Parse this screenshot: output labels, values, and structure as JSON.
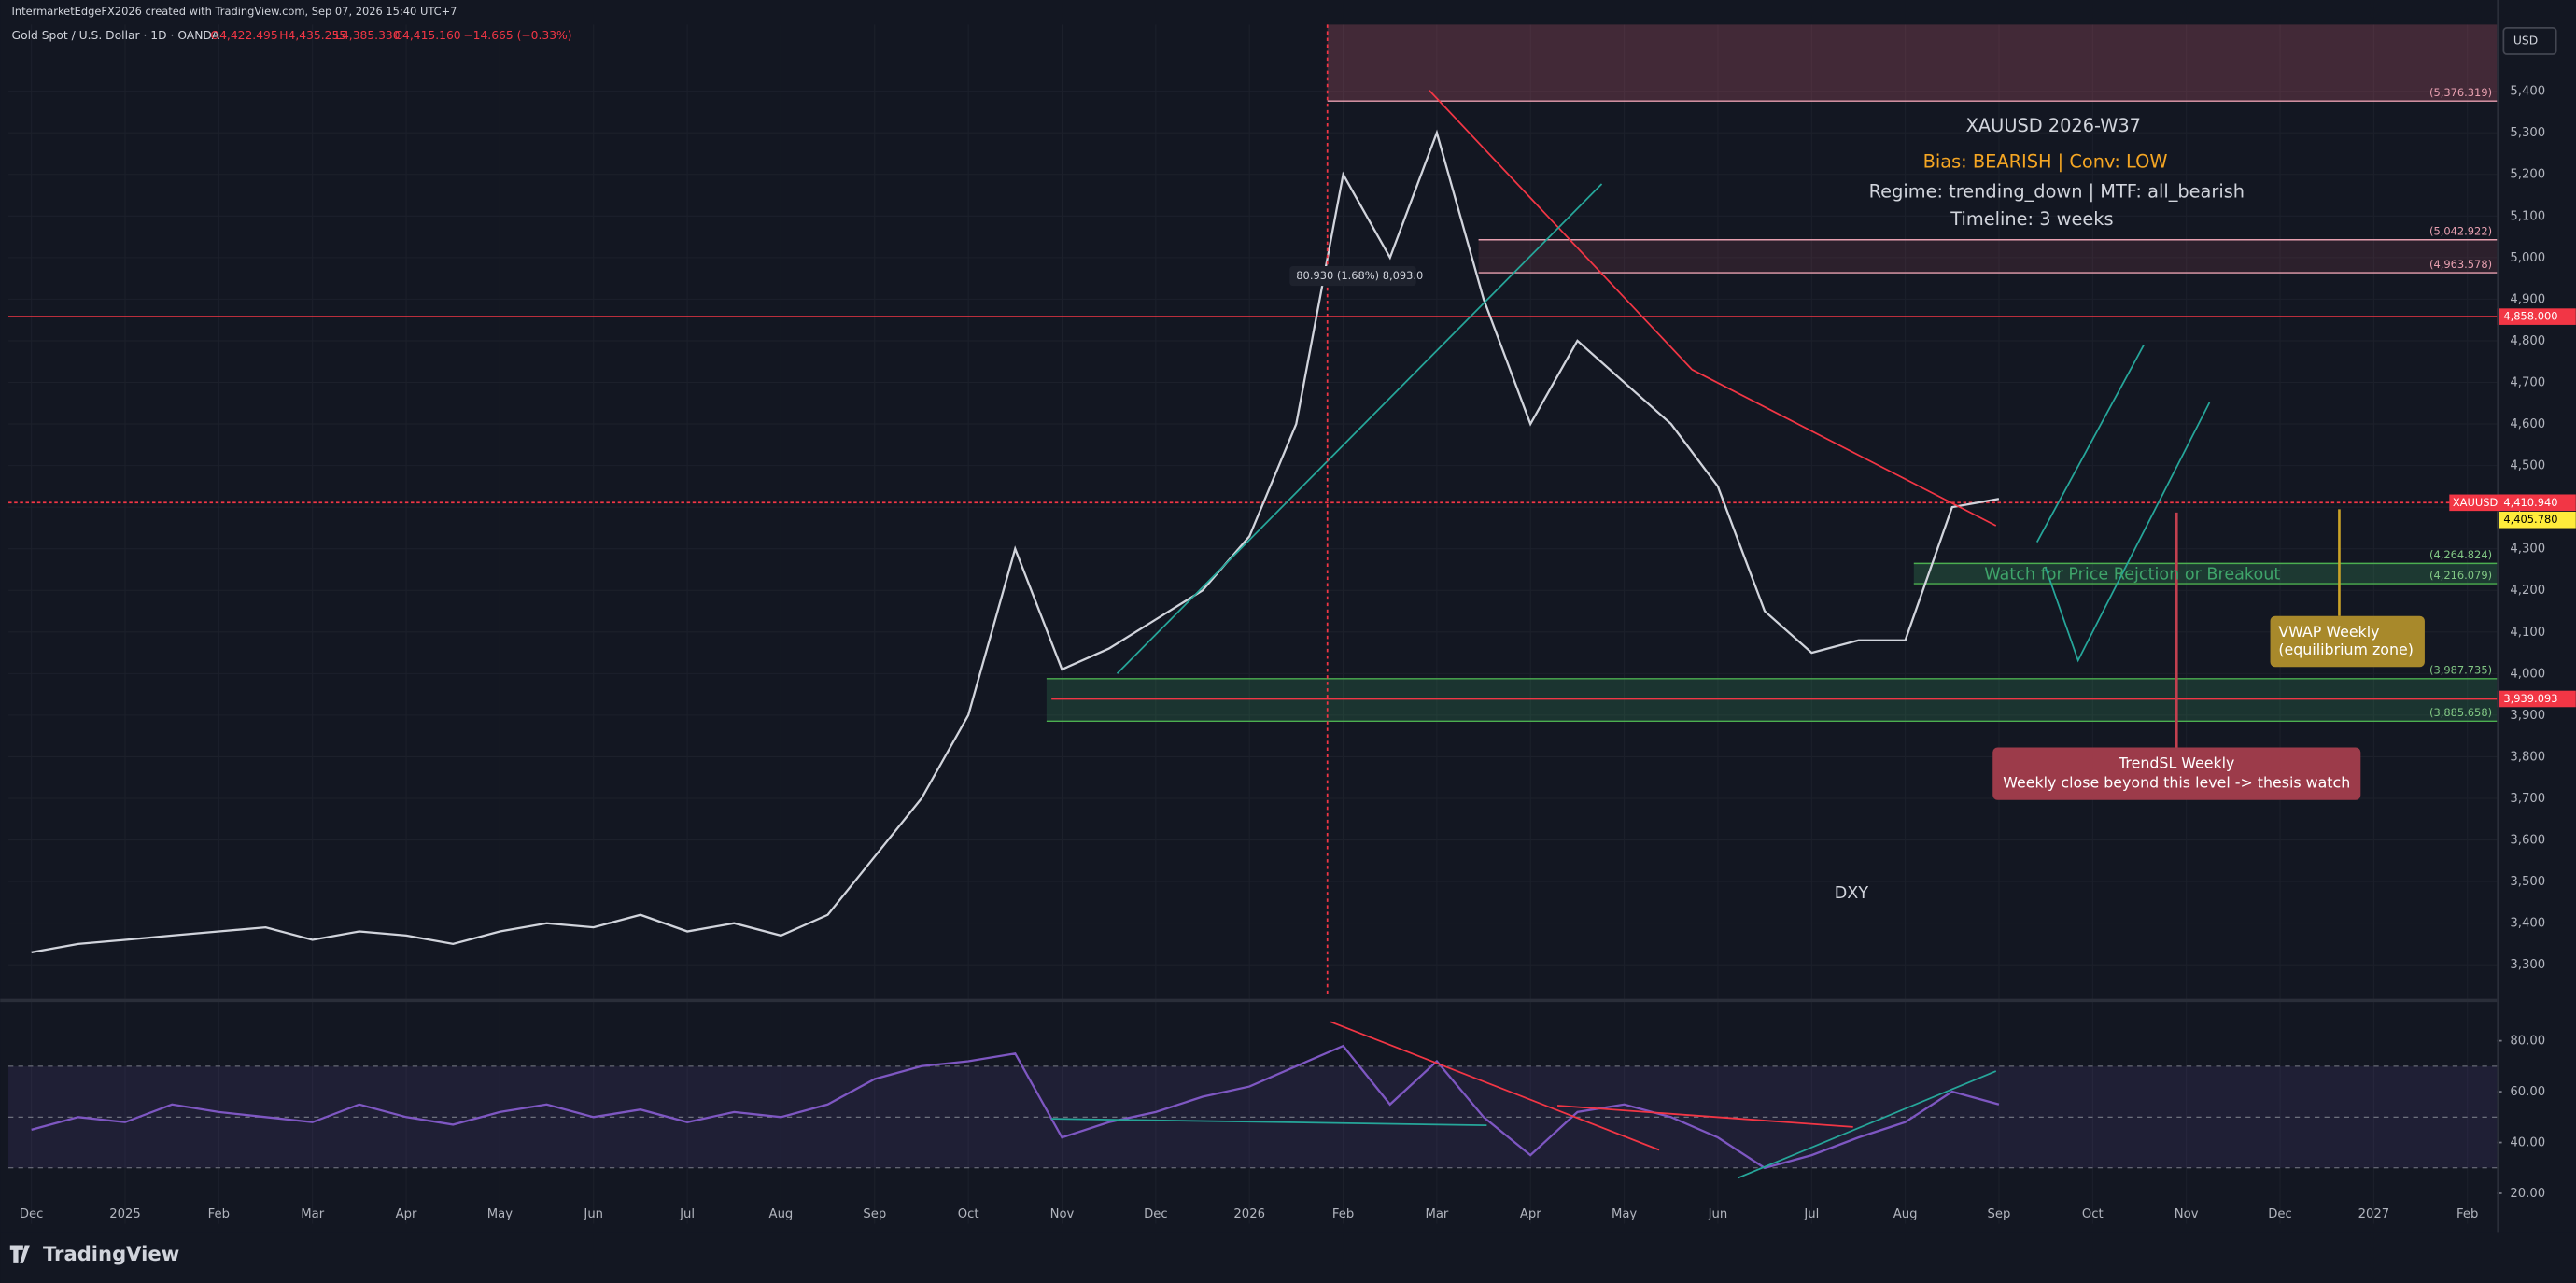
{
  "header": {
    "credit": "IntermarketEdgeFX2026 created with TradingView.com, Sep 07, 2026 15:40 UTC+7",
    "symbol": "Gold Spot / U.S. Dollar · 1D · OANDA",
    "open": "O4,422.495",
    "high": "H4,435.255",
    "low": "L4,385.330",
    "close": "C4,415.160",
    "change": "−14.665 (−0.33%)",
    "currency": "USD"
  },
  "annotations": {
    "box_title": "XAUUSD 2026-W37",
    "bias": "Bias: BEARISH | Conv: LOW",
    "regime": "Regime: trending_down | MTF: all_bearish",
    "timeline": "Timeline: 3 weeks",
    "watch": "Watch for Price Rejction or Breakout",
    "vwap_title": "VWAP Weekly",
    "vwap_sub": "(equilibrium zone)",
    "trendsl_title": "TrendSL Weekly",
    "trendsl_sub": "Weekly close beyond this level -> thesis watch",
    "dxy": "DXY",
    "measure": "80.930 (1.68%) 8,093.0",
    "symbol_tag": "XAUUSD"
  },
  "chart_data": [
    {
      "type": "line",
      "color": "#d1d4dc",
      "categories": [
        "Dec",
        null,
        "2025",
        null,
        "Feb",
        null,
        "Mar",
        null,
        "Apr",
        null,
        "May",
        null,
        "Jun",
        null,
        "Jul",
        null,
        "Aug",
        null,
        "Sep",
        null,
        "Oct",
        null,
        "Nov",
        null,
        "Dec",
        null,
        "2026",
        null,
        "Feb",
        null,
        "Mar",
        null,
        "Apr",
        null,
        "May",
        null,
        "Jun",
        null,
        "Jul",
        null,
        "Aug",
        null,
        "Sep",
        null,
        "Oct",
        null,
        "Nov",
        null,
        "Dec",
        null,
        "2027",
        null,
        "Feb"
      ],
      "values": [
        3330,
        3350,
        3360,
        3370,
        3380,
        3390,
        3360,
        3380,
        3370,
        3350,
        3380,
        3400,
        3390,
        3420,
        3380,
        3400,
        3370,
        3420,
        3560,
        3700,
        3900,
        4300,
        4010,
        4060,
        4130,
        4200,
        4330,
        4600,
        5200,
        5000,
        5300,
        4900,
        4600,
        4800,
        4700,
        4600,
        4450,
        4150,
        4050,
        4080,
        4080,
        4400,
        4420,
        null,
        null,
        null,
        null,
        null,
        null,
        null,
        null,
        null,
        null
      ],
      "ylim": [
        3230,
        5560
      ],
      "yticks": [
        {
          "value": 3300,
          "label": "3,300"
        },
        {
          "value": 3400,
          "label": "3,400"
        },
        {
          "value": 3500,
          "label": "3,500"
        },
        {
          "value": 3600,
          "label": "3,600"
        },
        {
          "value": 3700,
          "label": "3,700"
        },
        {
          "value": 3800,
          "label": "3,800"
        },
        {
          "value": 3900,
          "label": "3,900"
        },
        {
          "value": 4000,
          "label": "4,000"
        },
        {
          "value": 4100,
          "label": "4,100"
        },
        {
          "value": 4200,
          "label": "4,200"
        },
        {
          "value": 4300,
          "label": "4,300"
        },
        {
          "value": 4400,
          "label": "4,400"
        },
        {
          "value": 4500,
          "label": "4,500"
        },
        {
          "value": 4600,
          "label": "4,600"
        },
        {
          "value": 4700,
          "label": "4,700"
        },
        {
          "value": 4800,
          "label": "4,800"
        },
        {
          "value": 4900,
          "label": "4,900"
        },
        {
          "value": 5000,
          "label": "5,000"
        },
        {
          "value": 5100,
          "label": "5,100"
        },
        {
          "value": 5200,
          "label": "5,200"
        },
        {
          "value": 5300,
          "label": "5,300"
        },
        {
          "value": 5400,
          "label": "5,400"
        }
      ],
      "grid": true,
      "levels": [
        {
          "value": 4858,
          "label": "4,858.000",
          "color": "#f23645",
          "style": "solid"
        },
        {
          "value": 4410.94,
          "label": "4,410.940",
          "color": "#f23645",
          "style": "dashed"
        },
        {
          "value": 4405.78,
          "label": "4,405.780",
          "color": "#ffeb3b",
          "style": "none"
        },
        {
          "value": 3939.093,
          "label": "3,939.093",
          "color": "#f23645",
          "style": "solid"
        }
      ],
      "price_labels": [
        {
          "value": 5376.319,
          "label": "(5,376.319)"
        },
        {
          "value": 5042.922,
          "label": "(5,042.922)"
        },
        {
          "value": 4963.578,
          "label": "(4,963.578)"
        },
        {
          "value": 4264.824,
          "label": "(4,264.824)"
        },
        {
          "value": 4216.079,
          "label": "(4,216.079)"
        },
        {
          "value": 3987.735,
          "label": "(3,987.735)"
        },
        {
          "value": 3885.658,
          "label": "(3,885.658)"
        }
      ]
    },
    {
      "type": "line",
      "color": "#7e57c2",
      "values": [
        45,
        50,
        48,
        55,
        52,
        50,
        48,
        55,
        50,
        47,
        52,
        55,
        50,
        53,
        48,
        52,
        50,
        55,
        65,
        70,
        72,
        75,
        42,
        48,
        52,
        58,
        62,
        70,
        78,
        55,
        72,
        50,
        35,
        52,
        55,
        50,
        42,
        30,
        35,
        42,
        48,
        60,
        55,
        null,
        null,
        null,
        null,
        null,
        null,
        null,
        null,
        null,
        null
      ],
      "ylim": [
        8,
        92
      ],
      "yticks": [
        {
          "value": 20,
          "label": "20.00"
        },
        {
          "value": 40,
          "label": "40.00"
        },
        {
          "value": 60,
          "label": "60.00"
        },
        {
          "value": 80,
          "label": "80.00"
        }
      ],
      "bands": [
        30,
        50,
        70
      ]
    }
  ],
  "footer": {
    "brand": "TradingView"
  }
}
